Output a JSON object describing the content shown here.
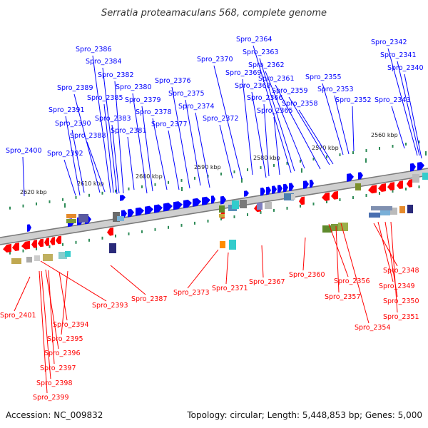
{
  "title": "Serratia proteamaculans 568, complete genome",
  "accession": "Accession: NC_009832",
  "summary": "Topology: circular; Length: 5,448,853 bp; Genes: 5,000",
  "colors": {
    "forward": "#0000ff",
    "reverse": "#ff0000",
    "backbone": "#b0b0b0",
    "tick": "#2e8b57"
  },
  "kbp_labels": [
    "2560 kbp",
    "2570 kbp",
    "2580 kbp",
    "2590 kbp",
    "2600 kbp",
    "2610 kbp",
    "2620 kbp"
  ],
  "forward_genes": [
    "Spro_2342",
    "Spro_2341",
    "Spro_2340",
    "Spro_2343",
    "Spro_2352",
    "Spro_2353",
    "Spro_2355",
    "Spro_2358",
    "Spro_2359",
    "Spro_2361",
    "Spro_2362",
    "Spro_2363",
    "Spro_2364",
    "Spro_2365",
    "Spro_2366",
    "Spro_2368",
    "Spro_2369",
    "Spro_2370",
    "Spro_2372",
    "Spro_2374",
    "Spro_2375",
    "Spro_2376",
    "Spro_2377",
    "Spro_2378",
    "Spro_2379",
    "Spro_2380",
    "Spro_2381",
    "Spro_2382",
    "Spro_2383",
    "Spro_2384",
    "Spro_2385",
    "Spro_2386",
    "Spro_2388",
    "Spro_2389",
    "Spro_2390",
    "Spro_2391",
    "Spro_2392",
    "Spro_2400"
  ],
  "reverse_genes": [
    "Spro_2348",
    "Spro_2349",
    "Spro_2350",
    "Spro_2351",
    "Spro_2354",
    "Spro_2356",
    "Spro_2357",
    "Spro_2360",
    "Spro_2367",
    "Spro_2371",
    "Spro_2373",
    "Spro_2387",
    "Spro_2393",
    "Spro_2394",
    "Spro_2395",
    "Spro_2396",
    "Spro_2397",
    "Spro_2398",
    "Spro_2399",
    "Spro_2401"
  ]
}
